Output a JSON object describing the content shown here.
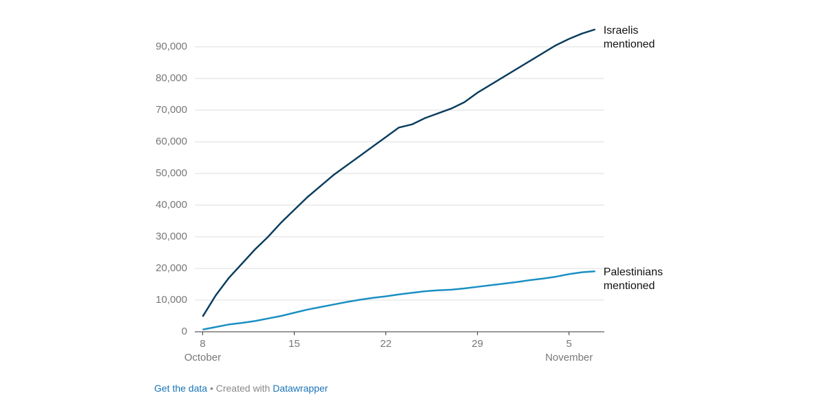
{
  "chart_data": {
    "type": "line",
    "x": [
      8,
      9,
      10,
      11,
      12,
      13,
      14,
      15,
      16,
      17,
      18,
      19,
      20,
      21,
      22,
      23,
      24,
      25,
      26,
      27,
      28,
      29,
      30,
      31,
      32,
      33,
      34,
      35,
      36,
      37,
      38
    ],
    "series": [
      {
        "name": "Israelis mentioned",
        "color": "#0b3d5e",
        "values": [
          4800,
          11500,
          17000,
          21500,
          26000,
          30000,
          34500,
          38500,
          42500,
          46000,
          49500,
          52500,
          55500,
          58500,
          61500,
          64500,
          65500,
          67500,
          69000,
          70500,
          72500,
          75500,
          78000,
          80500,
          83000,
          85500,
          88000,
          90500,
          92500,
          94200,
          95500
        ]
      },
      {
        "name": "Palestinians mentioned",
        "color": "#1a8fc2",
        "values": [
          700,
          1500,
          2300,
          2800,
          3400,
          4200,
          5000,
          6000,
          7000,
          7800,
          8600,
          9400,
          10100,
          10700,
          11200,
          11800,
          12300,
          12800,
          13100,
          13300,
          13700,
          14200,
          14700,
          15200,
          15700,
          16300,
          16800,
          17400,
          18200,
          18800,
          19100
        ]
      }
    ],
    "xlim": [
      7.4,
      38.7
    ],
    "xticks": [
      8,
      15,
      22,
      29,
      {
        "value": 36,
        "label": "5"
      }
    ],
    "month_labels": [
      "October",
      "November"
    ],
    "ylim": [
      0,
      100000
    ],
    "yticks": [
      0,
      {
        "value": 10000,
        "label": "10,000"
      },
      {
        "value": 20000,
        "label": "20,000"
      },
      {
        "value": 30000,
        "label": "30,000"
      },
      {
        "value": 40000,
        "label": "40,000"
      },
      {
        "value": 50000,
        "label": "50,000"
      },
      {
        "value": 60000,
        "label": "60,000"
      },
      {
        "value": 70000,
        "label": "70,000"
      },
      {
        "value": 80000,
        "label": "80,000"
      },
      {
        "value": 90000,
        "label": "90,000"
      }
    ],
    "grid": true
  },
  "footer": {
    "get_data": "Get the data",
    "separator": "•",
    "created_with": "Created with",
    "tool": "Datawrapper"
  }
}
